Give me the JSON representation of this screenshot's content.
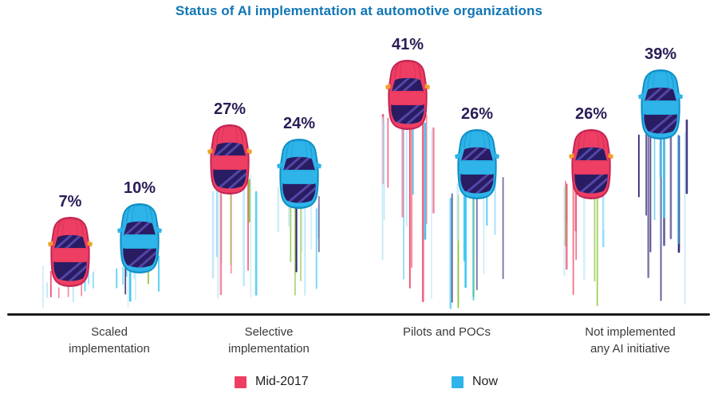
{
  "title": "Status of AI implementation at automotive organizations",
  "chart_data": {
    "type": "bar",
    "subtype": "pictogram-cars",
    "title": "Status of AI implementation at automotive organizations",
    "categories": [
      "Scaled implementation",
      "Selective implementation",
      "Pilots and POCs",
      "Not implemented any AI initiative"
    ],
    "categories_display": [
      "Scaled\nimplementation",
      "Selective\nimplementation",
      "Pilots and POCs",
      "Not implemented\nany AI initiative"
    ],
    "series": [
      {
        "name": "Mid-2017",
        "color": "#EF3E63",
        "values": [
          7,
          27,
          41,
          26
        ]
      },
      {
        "name": "Now",
        "color": "#2EB4E9",
        "values": [
          10,
          24,
          26,
          39
        ]
      }
    ],
    "value_suffix": "%",
    "value_labels": [
      [
        "7%",
        "27%",
        "41%",
        "26%"
      ],
      [
        "10%",
        "24%",
        "26%",
        "39%"
      ]
    ],
    "ylim": [
      0,
      45
    ],
    "grid": false,
    "legend_position": "bottom"
  },
  "styles": {
    "background": "#FFFFFF",
    "title_color": "#1176B5",
    "value_label_color": "#2B1C55",
    "category_label_color": "#3A3A3A",
    "axis_color": "#1B1B1B",
    "cars": [
      {
        "body": "#EF3E63",
        "dark": "#C32553",
        "window": "#2A1C63",
        "reflection": "#5D53B8",
        "mirror": "#F0A32F"
      },
      {
        "body": "#2EB4E9",
        "dark": "#0E8EC6",
        "window": "#2A1C63",
        "reflection": "#5D53B8",
        "mirror": "#2EB4E9"
      }
    ],
    "trail_colors": [
      [
        "#F04A6D",
        "#F04A6D",
        "#41C7F2",
        "#BCE7F8",
        "#BCE7F8",
        "#2B2171",
        "#8CC63E"
      ],
      [
        "#41C7F2",
        "#41C7F2",
        "#BCE7F8",
        "#BCE7F8",
        "#2B2171",
        "#2B2171",
        "#8CC63E"
      ]
    ]
  }
}
